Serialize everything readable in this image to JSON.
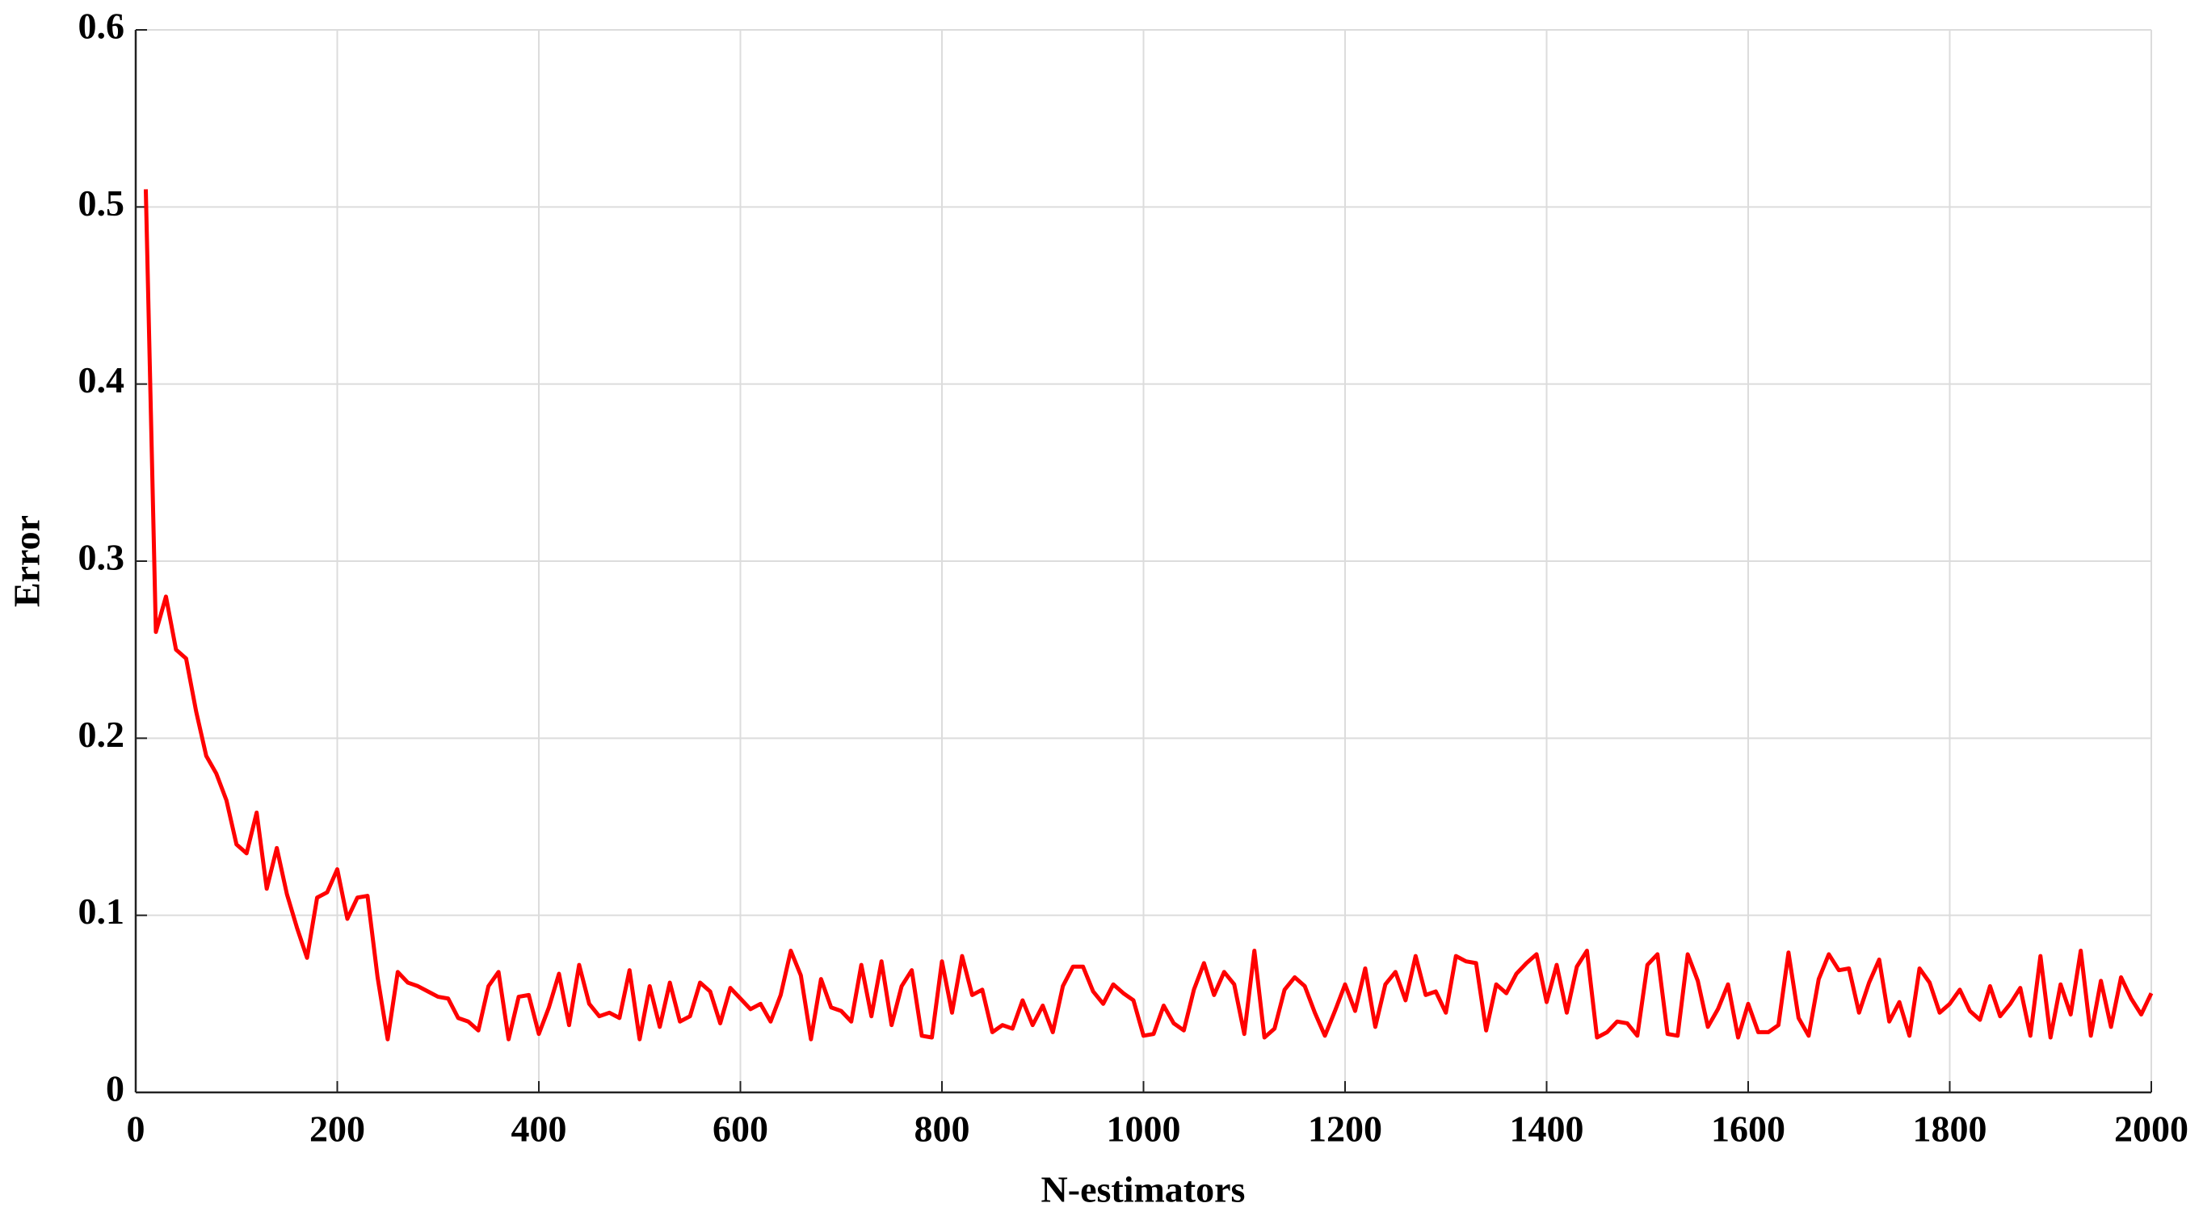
{
  "chart_data": {
    "type": "line",
    "xlabel": "N-estimators",
    "ylabel": "Error",
    "x": [
      10,
      20,
      30,
      40,
      50,
      60,
      70,
      80,
      90,
      100,
      110,
      120,
      130,
      140,
      150,
      160,
      170,
      180,
      190,
      200,
      210,
      220,
      230,
      240,
      250,
      260,
      270,
      280,
      290,
      300,
      310,
      320,
      330,
      340,
      350,
      360,
      370,
      380,
      390,
      400,
      410,
      420,
      430,
      440,
      450,
      460,
      470,
      480,
      490,
      500,
      510,
      520,
      530,
      540,
      550,
      560,
      570,
      580,
      590,
      600,
      610,
      620,
      630,
      640,
      650,
      660,
      670,
      680,
      690,
      700,
      710,
      720,
      730,
      740,
      750,
      760,
      770,
      780,
      790,
      800,
      810,
      820,
      830,
      840,
      850,
      860,
      870,
      880,
      890,
      900,
      910,
      920,
      930,
      940,
      950,
      960,
      970,
      980,
      990,
      1000,
      1010,
      1020,
      1030,
      1040,
      1050,
      1060,
      1070,
      1080,
      1090,
      1100,
      1110,
      1120,
      1130,
      1140,
      1150,
      1160,
      1170,
      1180,
      1190,
      1200,
      1210,
      1220,
      1230,
      1240,
      1250,
      1260,
      1270,
      1280,
      1290,
      1300,
      1310,
      1320,
      1330,
      1340,
      1350,
      1360,
      1370,
      1380,
      1390,
      1400,
      1410,
      1420,
      1430,
      1440,
      1450,
      1460,
      1470,
      1480,
      1490,
      1500,
      1510,
      1520,
      1530,
      1540,
      1550,
      1560,
      1570,
      1580,
      1590,
      1600,
      1610,
      1620,
      1630,
      1640,
      1650,
      1660,
      1670,
      1680,
      1690,
      1700,
      1710,
      1720,
      1730,
      1740,
      1750,
      1760,
      1770,
      1780,
      1790,
      1800,
      1810,
      1820,
      1830,
      1840,
      1850,
      1860,
      1870,
      1880,
      1890,
      1900,
      1910,
      1920,
      1930,
      1940,
      1950,
      1960,
      1970,
      1980,
      1990,
      2000
    ],
    "series": [
      {
        "color": "#ff0000",
        "values": [
          0.51,
          0.26,
          0.28,
          0.25,
          0.245,
          0.215,
          0.19,
          0.18,
          0.165,
          0.14,
          0.135,
          0.158,
          0.115,
          0.138,
          0.112,
          0.093,
          0.076,
          0.11,
          0.113,
          0.126,
          0.098,
          0.11,
          0.111,
          0.065,
          0.03,
          0.068,
          0.062,
          0.06,
          0.057,
          0.054,
          0.053,
          0.042,
          0.04,
          0.035,
          0.06,
          0.068,
          0.03,
          0.054,
          0.055,
          0.033,
          0.048,
          0.067,
          0.038,
          0.072,
          0.05,
          0.043,
          0.045,
          0.042,
          0.069,
          0.03,
          0.06,
          0.037,
          0.062,
          0.04,
          0.043,
          0.062,
          0.057,
          0.039,
          0.059,
          0.053,
          0.047,
          0.05,
          0.04,
          0.055,
          0.08,
          0.066,
          0.03,
          0.064,
          0.048,
          0.046,
          0.04,
          0.072,
          0.043,
          0.074,
          0.038,
          0.06,
          0.069,
          0.032,
          0.031,
          0.074,
          0.045,
          0.077,
          0.055,
          0.058,
          0.034,
          0.038,
          0.036,
          0.052,
          0.038,
          0.049,
          0.034,
          0.06,
          0.071,
          0.071,
          0.057,
          0.05,
          0.061,
          0.056,
          0.052,
          0.032,
          0.033,
          0.049,
          0.039,
          0.035,
          0.058,
          0.073,
          0.055,
          0.068,
          0.061,
          0.033,
          0.08,
          0.031,
          0.036,
          0.058,
          0.065,
          0.06,
          0.045,
          0.032,
          0.046,
          0.061,
          0.046,
          0.07,
          0.037,
          0.061,
          0.068,
          0.052,
          0.077,
          0.055,
          0.057,
          0.045,
          0.077,
          0.074,
          0.073,
          0.035,
          0.061,
          0.056,
          0.067,
          0.073,
          0.078,
          0.051,
          0.072,
          0.045,
          0.071,
          0.08,
          0.031,
          0.034,
          0.04,
          0.039,
          0.032,
          0.072,
          0.078,
          0.033,
          0.032,
          0.078,
          0.063,
          0.037,
          0.047,
          0.061,
          0.031,
          0.05,
          0.034,
          0.034,
          0.038,
          0.079,
          0.042,
          0.032,
          0.064,
          0.078,
          0.069,
          0.07,
          0.045,
          0.062,
          0.075,
          0.04,
          0.051,
          0.032,
          0.07,
          0.062,
          0.045,
          0.05,
          0.058,
          0.046,
          0.041,
          0.06,
          0.043,
          0.05,
          0.059,
          0.032,
          0.077,
          0.031,
          0.061,
          0.044,
          0.08,
          0.032,
          0.063,
          0.037,
          0.065,
          0.053,
          0.044,
          0.056
        ]
      }
    ],
    "xlim": [
      0,
      2000
    ],
    "xticks": [
      0,
      200,
      400,
      600,
      800,
      1000,
      1200,
      1400,
      1600,
      1800,
      2000
    ],
    "ylim": [
      0,
      0.6
    ],
    "yticks": [
      0,
      0.1,
      0.2,
      0.3,
      0.4,
      0.5,
      0.6
    ],
    "grid": true
  }
}
